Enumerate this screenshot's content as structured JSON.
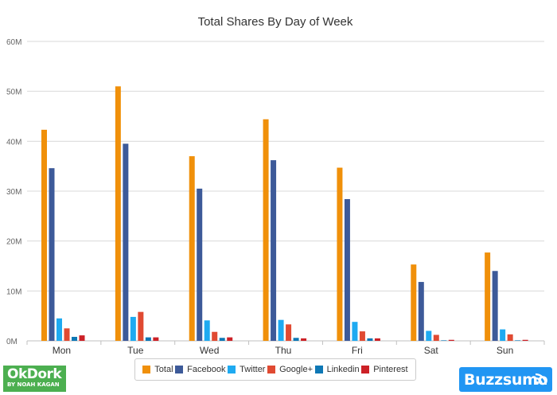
{
  "chart_data": {
    "type": "bar",
    "title": "Total Shares By Day of Week",
    "categories": [
      "Mon",
      "Tue",
      "Wed",
      "Thu",
      "Fri",
      "Sat",
      "Sun"
    ],
    "ylim": [
      0,
      60
    ],
    "y_ticks": [
      0,
      10,
      20,
      30,
      40,
      50,
      60
    ],
    "y_tick_labels": [
      "0M",
      "10M",
      "20M",
      "30M",
      "40M",
      "50M",
      "60M"
    ],
    "grid": true,
    "legend_position": "bottom-center",
    "series": [
      {
        "name": "Total",
        "color": "#f0900a",
        "values": [
          42.3,
          51.0,
          37.0,
          44.4,
          34.7,
          15.3,
          17.7
        ]
      },
      {
        "name": "Facebook",
        "color": "#3d5a99",
        "values": [
          34.6,
          39.5,
          30.5,
          36.2,
          28.4,
          11.8,
          14.0
        ]
      },
      {
        "name": "Twitter",
        "color": "#1eaaf1",
        "values": [
          4.5,
          4.8,
          4.1,
          4.2,
          3.8,
          2.0,
          2.3
        ]
      },
      {
        "name": "Google+",
        "color": "#e04a32",
        "values": [
          2.5,
          5.8,
          1.8,
          3.3,
          1.9,
          1.2,
          1.3
        ]
      },
      {
        "name": "Linkedin",
        "color": "#0e78b5",
        "values": [
          0.8,
          0.7,
          0.6,
          0.6,
          0.5,
          0.1,
          0.1
        ]
      },
      {
        "name": "Pinterest",
        "color": "#cc2127",
        "values": [
          1.1,
          0.7,
          0.7,
          0.5,
          0.5,
          0.2,
          0.2
        ]
      }
    ]
  },
  "logos": {
    "left_line1": "OkDork",
    "left_line2": "BY NOAH KAGAN",
    "right": "Buzzsumo"
  }
}
